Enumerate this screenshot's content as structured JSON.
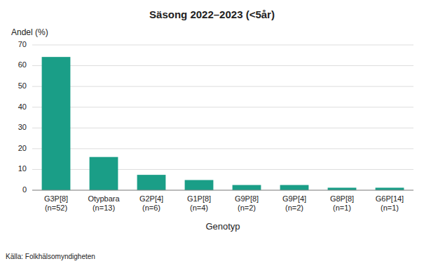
{
  "chart_data": {
    "type": "bar",
    "title": "Säsong 2022–2023 (<5år)",
    "ylabel": "Andel (%)",
    "xlabel": "Genotyp",
    "source": "Källa: Folkhälsomyndigheten",
    "categories": [
      "G3P[8]\n(n=52)",
      "Otypbara\n(n=13)",
      "G2P[4]\n(n=6)",
      "G1P[8]\n(n=4)",
      "G9P[8]\n(n=2)",
      "G9P[4]\n(n=2)",
      "G8P[8]\n(n=1)",
      "G6P[14]\n(n=1)"
    ],
    "values": [
      64.2,
      16.0,
      7.4,
      4.9,
      2.5,
      2.5,
      1.2,
      1.2
    ],
    "color": "#1a9e87",
    "ylim": [
      0,
      70
    ],
    "yticks": [
      0,
      10,
      20,
      30,
      40,
      50,
      60,
      70
    ],
    "grid": true
  }
}
